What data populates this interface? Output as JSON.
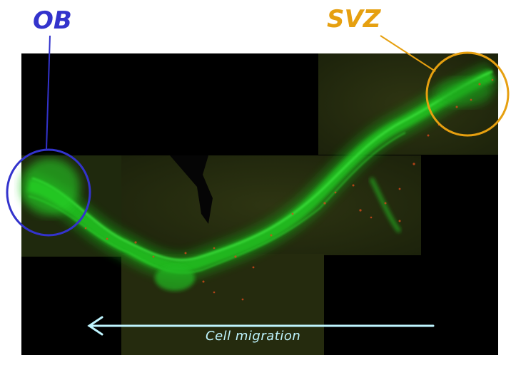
{
  "labels": {
    "ob": "OB",
    "svz": "SVZ",
    "caption": "Cell migration"
  },
  "colors": {
    "ob": "#3333cc",
    "svz": "#e6a010",
    "arrow": "#bff5ff",
    "stream": "#22cc22",
    "cells": "#d84a1a",
    "tissue": "#2a3010"
  },
  "icons": {
    "arrow": "left-arrow-icon"
  }
}
